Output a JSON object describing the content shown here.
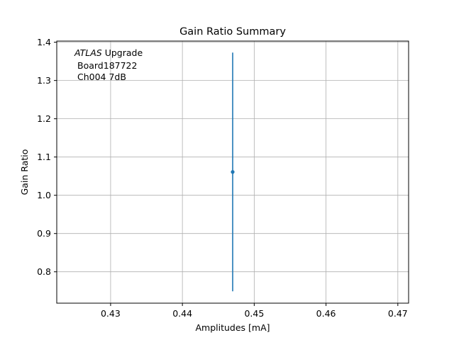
{
  "chart_data": {
    "type": "scatter",
    "title": "Gain Ratio Summary",
    "xlabel": "Amplitudes [mA]",
    "ylabel": "Gain Ratio",
    "xlim": [
      0.4225,
      0.4715
    ],
    "ylim": [
      0.718,
      1.403
    ],
    "xticks": [
      0.43,
      0.44,
      0.45,
      0.46,
      0.47
    ],
    "xtick_labels": [
      "0.43",
      "0.44",
      "0.45",
      "0.46",
      "0.47"
    ],
    "yticks": [
      0.8,
      0.9,
      1.0,
      1.1,
      1.2,
      1.3,
      1.4
    ],
    "ytick_labels": [
      "0.8",
      "0.9",
      "1.0",
      "1.1",
      "1.2",
      "1.3",
      "1.4"
    ],
    "grid": true,
    "annotation": {
      "line1_italic": "ATLAS",
      "line1_rest": " Upgrade",
      "line2": "Board187722",
      "line3": "Ch004 7dB"
    },
    "series": [
      {
        "x": [
          0.447
        ],
        "y": [
          1.061
        ],
        "yerr_low": [
          0.749
        ],
        "yerr_high": [
          1.373
        ],
        "color": "#1f77b4"
      }
    ]
  }
}
